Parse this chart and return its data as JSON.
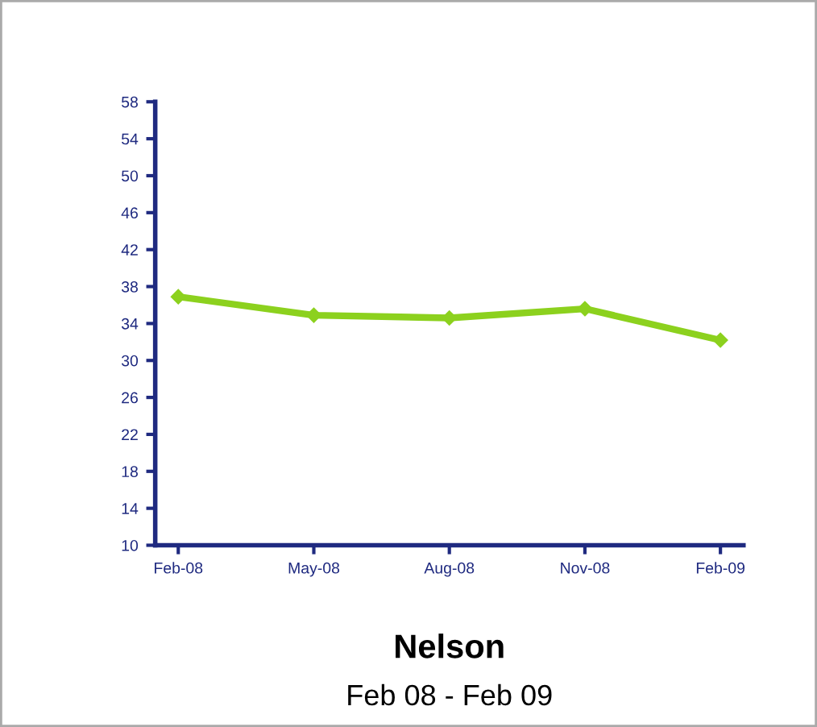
{
  "chart_data": {
    "type": "line",
    "title": "Nelson",
    "subtitle": "Feb 08 - Feb 09",
    "categories": [
      "Feb-08",
      "May-08",
      "Aug-08",
      "Nov-08",
      "Feb-09"
    ],
    "series": [
      {
        "color": "#8cd11e",
        "values": [
          36.9,
          34.9,
          34.6,
          35.6,
          32.2
        ]
      }
    ],
    "ylim": [
      10,
      58
    ],
    "yticks": [
      10,
      14,
      18,
      22,
      26,
      30,
      34,
      38,
      42,
      46,
      50,
      54,
      58
    ],
    "marker": "diamond",
    "line_style": "solid",
    "grid": false,
    "legend": false
  }
}
